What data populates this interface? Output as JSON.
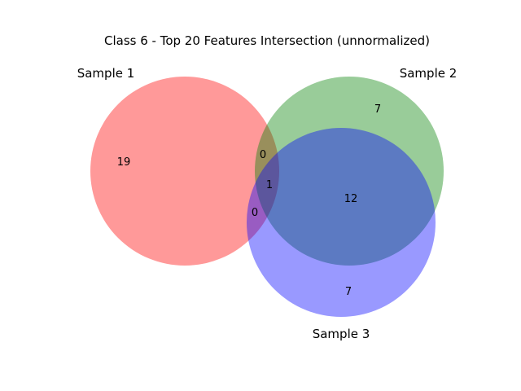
{
  "title": "Class 6 - Top 20 Features Intersection (unnormalized)",
  "sets": [
    {
      "name": "Sample 1",
      "color": "#ff0000"
    },
    {
      "name": "Sample 2",
      "color": "#008000"
    },
    {
      "name": "Sample 3",
      "color": "#0000ff"
    }
  ],
  "regions": {
    "only_1": "19",
    "only_2": "7",
    "only_3": "7",
    "s1_s2": "0",
    "s1_s3": "0",
    "s2_s3": "12",
    "all": "1"
  }
}
